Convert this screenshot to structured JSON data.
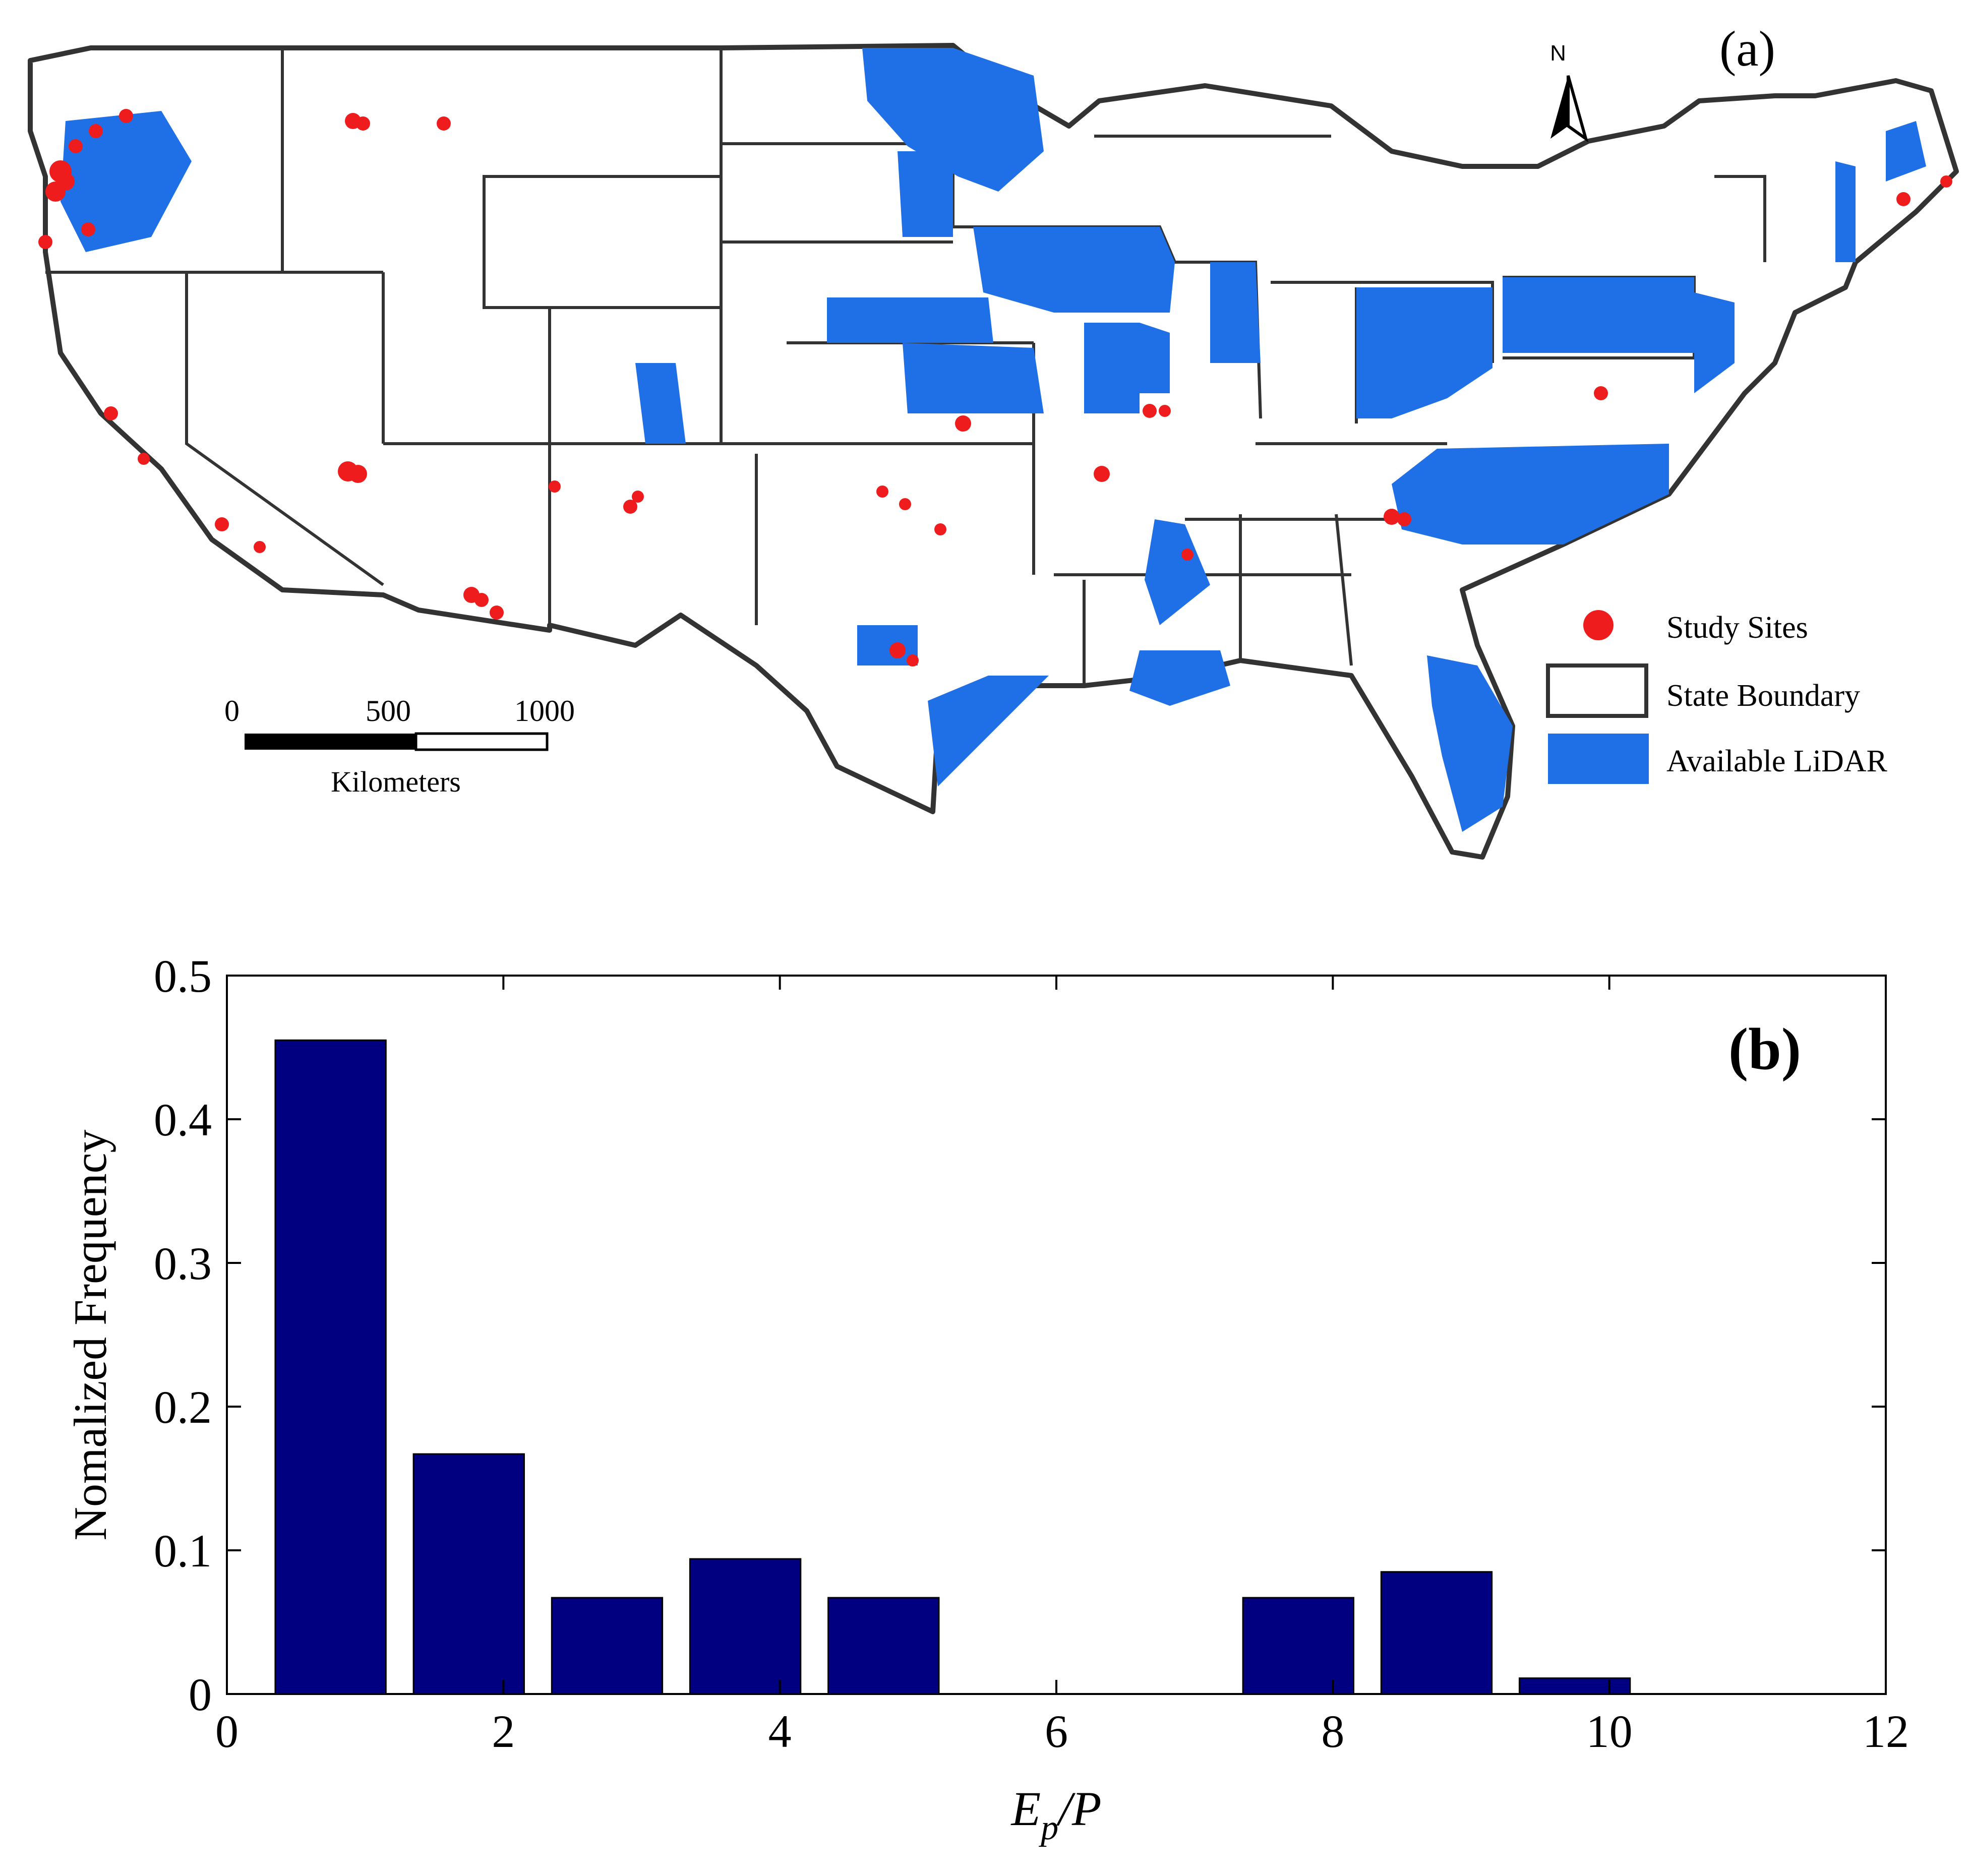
{
  "panel_a": {
    "label": "(a)",
    "north_label": "N",
    "legend": {
      "study_sites": "Study Sites",
      "state_boundary": "State Boundary",
      "available_lidar": "Available LiDAR"
    },
    "scale_bar": {
      "ticks": [
        "0",
        "500",
        "1000"
      ],
      "unit": "Kilometers"
    },
    "colors": {
      "lidar": "#1f6fe6",
      "sites": "#ee1c1c",
      "boundary": "#333333"
    }
  },
  "chart_data": {
    "type": "bar",
    "label": "(b)",
    "xlabel_main": "E",
    "xlabel_sub": "p",
    "xlabel_tail": "/P",
    "ylabel": "Nomalized Frequency",
    "x": [
      0.75,
      1.75,
      2.75,
      3.75,
      4.75,
      5.75,
      6.75,
      7.75,
      8.75,
      9.75
    ],
    "values": [
      0.455,
      0.167,
      0.067,
      0.094,
      0.067,
      0.0,
      0.0,
      0.067,
      0.085,
      0.011
    ],
    "bar_width": 0.8,
    "xlim": [
      0,
      12
    ],
    "ylim": [
      0,
      0.5
    ],
    "xticks": [
      0,
      2,
      4,
      6,
      8,
      10,
      12
    ],
    "xtick_labels": [
      "0",
      "2",
      "4",
      "6",
      "8",
      "10",
      "12"
    ],
    "yticks": [
      0,
      0.1,
      0.2,
      0.3,
      0.4,
      0.5
    ],
    "ytick_labels": [
      "0",
      "0.1",
      "0.2",
      "0.3",
      "0.4",
      "0.5"
    ],
    "bar_color": "#000080",
    "grid": false
  }
}
